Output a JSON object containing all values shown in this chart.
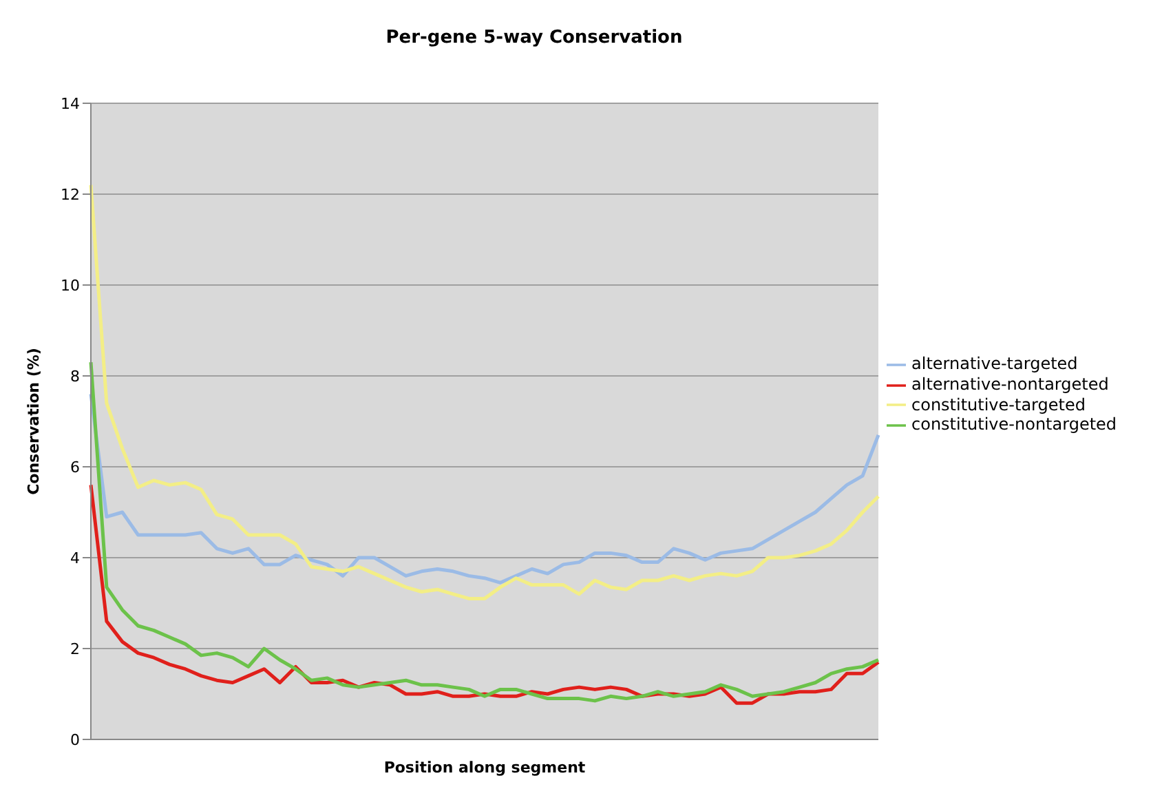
{
  "chart_data": {
    "type": "line",
    "title": "Per-gene 5-way Conservation",
    "xlabel": "Position along segment",
    "ylabel": "Conservation (%)",
    "categories": [
      null,
      null,
      null,
      null,
      null,
      null,
      null,
      null,
      null,
      null,
      null,
      null,
      null,
      null,
      null,
      null,
      null,
      null,
      null,
      null,
      null,
      null,
      null,
      null,
      null,
      null,
      null,
      null,
      null,
      null,
      null,
      null,
      null,
      null,
      null,
      null,
      null,
      null,
      null,
      null,
      null,
      null,
      null,
      null,
      null,
      null,
      null,
      null,
      null,
      null,
      null
    ],
    "series": [
      {
        "name": "alternative-targeted",
        "color": "#9bbbe6",
        "values": [
          7.6,
          4.9,
          5.0,
          4.5,
          4.5,
          4.5,
          4.5,
          4.55,
          4.2,
          4.1,
          4.2,
          3.85,
          3.85,
          4.05,
          3.95,
          3.85,
          3.6,
          4.0,
          4.0,
          3.8,
          3.6,
          3.7,
          3.75,
          3.7,
          3.6,
          3.55,
          3.45,
          3.6,
          3.75,
          3.65,
          3.85,
          3.9,
          4.1,
          4.1,
          4.05,
          3.9,
          3.9,
          4.2,
          4.1,
          3.95,
          4.1,
          4.15,
          4.2,
          4.4,
          4.6,
          4.8,
          5.0,
          5.3,
          5.6,
          5.8,
          6.7
        ]
      },
      {
        "name": "alternative-nontargeted",
        "color": "#e0201b",
        "values": [
          5.6,
          2.6,
          2.15,
          1.9,
          1.8,
          1.65,
          1.55,
          1.4,
          1.3,
          1.25,
          1.4,
          1.55,
          1.25,
          1.6,
          1.25,
          1.25,
          1.3,
          1.15,
          1.25,
          1.2,
          1.0,
          1.0,
          1.05,
          0.95,
          0.95,
          1.0,
          0.95,
          0.95,
          1.05,
          1.0,
          1.1,
          1.15,
          1.1,
          1.15,
          1.1,
          0.95,
          1.0,
          1.0,
          0.95,
          1.0,
          1.15,
          0.8,
          0.8,
          1.0,
          1.0,
          1.05,
          1.05,
          1.1,
          1.45,
          1.45,
          1.7
        ]
      },
      {
        "name": "constitutive-targeted",
        "color": "#f3ee86",
        "values": [
          12.2,
          7.4,
          6.4,
          5.55,
          5.7,
          5.6,
          5.65,
          5.5,
          4.95,
          4.85,
          4.5,
          4.5,
          4.5,
          4.3,
          3.8,
          3.75,
          3.7,
          3.8,
          3.65,
          3.5,
          3.35,
          3.25,
          3.3,
          3.2,
          3.1,
          3.1,
          3.35,
          3.55,
          3.4,
          3.4,
          3.4,
          3.2,
          3.5,
          3.35,
          3.3,
          3.5,
          3.5,
          3.6,
          3.5,
          3.6,
          3.65,
          3.6,
          3.7,
          4.0,
          4.0,
          4.05,
          4.15,
          4.3,
          4.6,
          5.0,
          5.35
        ]
      },
      {
        "name": "constitutive-nontargeted",
        "color": "#6cc24a",
        "values": [
          8.3,
          3.35,
          2.85,
          2.5,
          2.4,
          2.25,
          2.1,
          1.85,
          1.9,
          1.8,
          1.6,
          2.0,
          1.75,
          1.55,
          1.3,
          1.35,
          1.2,
          1.15,
          1.2,
          1.25,
          1.3,
          1.2,
          1.2,
          1.15,
          1.1,
          0.95,
          1.1,
          1.1,
          1.0,
          0.9,
          0.9,
          0.9,
          0.85,
          0.95,
          0.9,
          0.95,
          1.05,
          0.95,
          1.0,
          1.05,
          1.2,
          1.1,
          0.95,
          1.0,
          1.05,
          1.15,
          1.25,
          1.45,
          1.55,
          1.6,
          1.75
        ]
      }
    ],
    "ylim": [
      0,
      14
    ],
    "yticks": [
      0,
      2,
      4,
      6,
      8,
      10,
      12,
      14
    ],
    "grid": "y",
    "legend": "right",
    "tick_labels": "y",
    "marker": "none",
    "line_style": "solid"
  }
}
